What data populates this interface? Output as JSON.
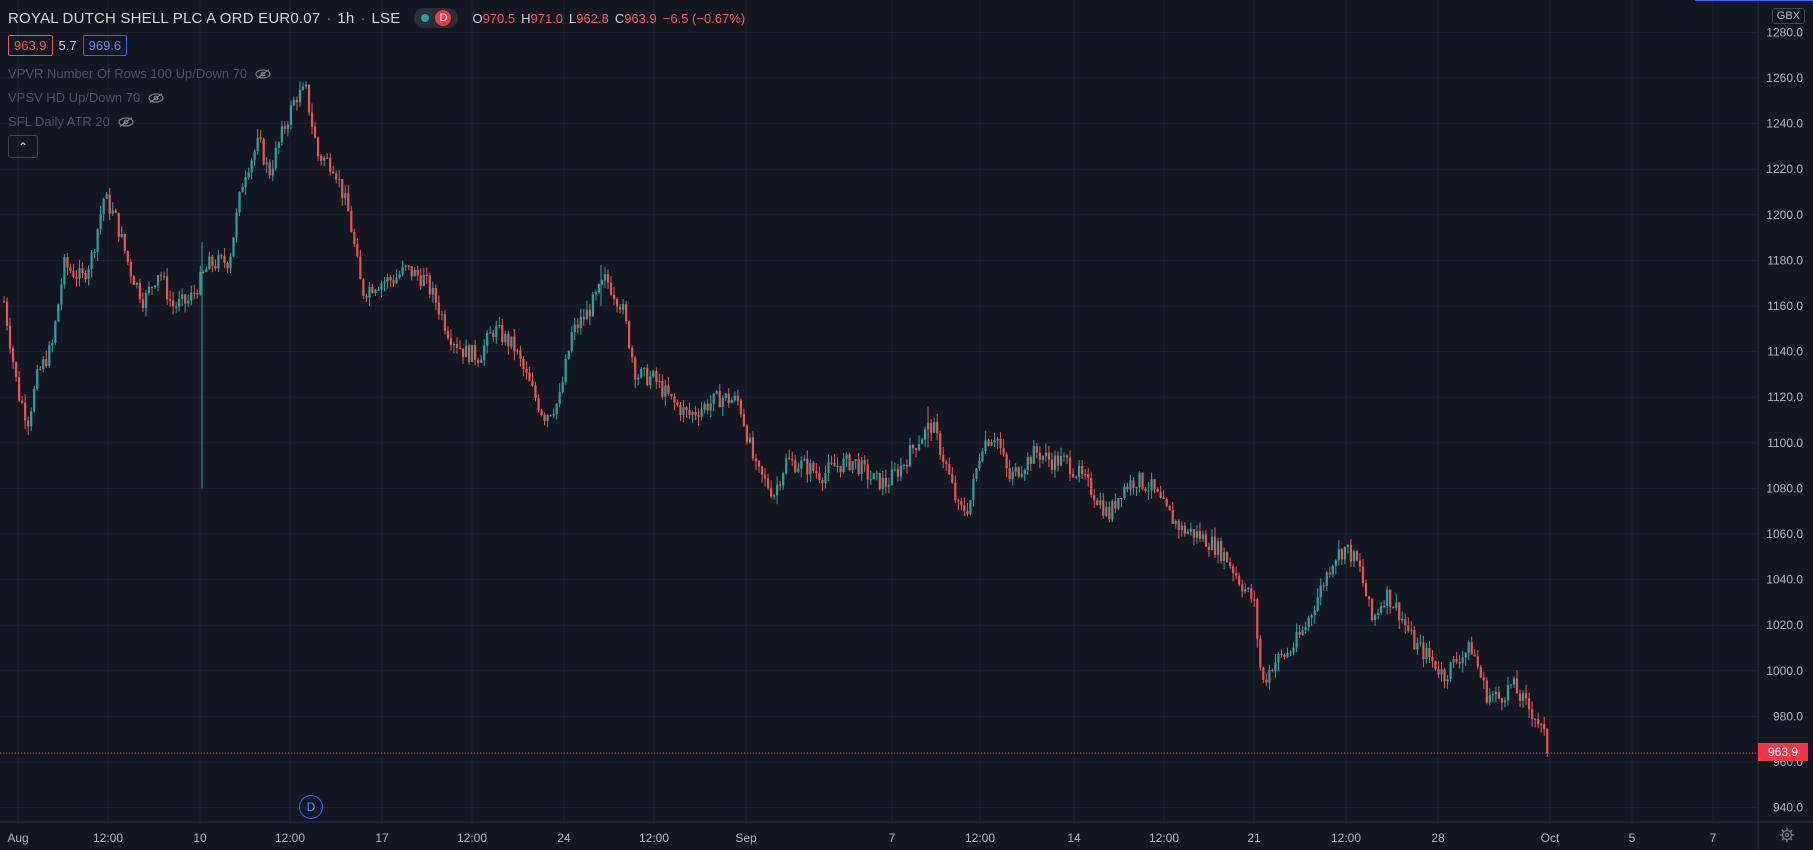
{
  "header": {
    "symbol": "ROYAL DUTCH SHELL PLC A ORD EUR0.07",
    "interval": "1h",
    "exchange": "LSE",
    "status_badge": "D",
    "ohlc": {
      "o_label": "O",
      "o": "970.5",
      "h_label": "H",
      "h": "971.0",
      "l_label": "L",
      "l": "962.8",
      "c_label": "C",
      "c": "963.9",
      "change": "−6.5 (−0.67%)"
    }
  },
  "price_boxes": {
    "bid": "963.9",
    "spread": "5.7",
    "ask": "969.6"
  },
  "indicators": [
    {
      "label": "VPVR Number Of Rows 100 Up/Down 70"
    },
    {
      "label": "VPSV HD Up/Down 70"
    },
    {
      "label": "SFL Daily ATR 20"
    }
  ],
  "currency": "GBX",
  "last_price_tag": "963.9",
  "event_marker": "D",
  "colors": {
    "up": "#26a69a",
    "down": "#ef5350",
    "grid": "#1e2230",
    "axis_text": "#b2b5be",
    "background": "#131722"
  },
  "chart_data": {
    "type": "candlestick",
    "y_axis": {
      "min": 930,
      "max": 1285,
      "ticks": [
        940,
        960,
        980,
        1000,
        1020,
        1040,
        1060,
        1080,
        1100,
        1120,
        1140,
        1160,
        1180,
        1200,
        1220,
        1240,
        1260,
        1280
      ],
      "tick_labels": [
        "940.0",
        "960.0",
        "980.0",
        "1000.0",
        "1020.0",
        "1040.0",
        "1060.0",
        "1080.0",
        "1100.0",
        "1120.0",
        "1140.0",
        "1160.0",
        "1180.0",
        "1200.0",
        "1220.0",
        "1240.0",
        "1260.0",
        "1280.0"
      ]
    },
    "x_axis": {
      "labels": [
        "Aug",
        "12:00",
        "10",
        "12:00",
        "17",
        "12:00",
        "24",
        "12:00",
        "Sep",
        "7",
        "12:00",
        "14",
        "12:00",
        "21",
        "12:00",
        "28",
        "Oct",
        "5",
        "7"
      ]
    },
    "last_price": 963.9,
    "path": [
      {
        "t": 0,
        "p": 1162
      },
      {
        "t": 14,
        "p": 1122
      },
      {
        "t": 24,
        "p": 1110
      },
      {
        "t": 34,
        "p": 1130
      },
      {
        "t": 48,
        "p": 1142
      },
      {
        "t": 60,
        "p": 1178
      },
      {
        "t": 78,
        "p": 1172
      },
      {
        "t": 88,
        "p": 1182
      },
      {
        "t": 100,
        "p": 1208
      },
      {
        "t": 112,
        "p": 1198
      },
      {
        "t": 126,
        "p": 1176
      },
      {
        "t": 140,
        "p": 1162
      },
      {
        "t": 155,
        "p": 1176
      },
      {
        "t": 168,
        "p": 1160
      },
      {
        "t": 185,
        "p": 1162
      },
      {
        "t": 205,
        "p": 1178
      },
      {
        "t": 225,
        "p": 1180
      },
      {
        "t": 240,
        "p": 1218
      },
      {
        "t": 255,
        "p": 1232
      },
      {
        "t": 265,
        "p": 1218
      },
      {
        "t": 280,
        "p": 1238
      },
      {
        "t": 292,
        "p": 1252
      },
      {
        "t": 302,
        "p": 1254
      },
      {
        "t": 314,
        "p": 1226
      },
      {
        "t": 330,
        "p": 1222
      },
      {
        "t": 345,
        "p": 1200
      },
      {
        "t": 358,
        "p": 1166
      },
      {
        "t": 372,
        "p": 1170
      },
      {
        "t": 390,
        "p": 1172
      },
      {
        "t": 402,
        "p": 1176
      },
      {
        "t": 420,
        "p": 1172
      },
      {
        "t": 432,
        "p": 1162
      },
      {
        "t": 445,
        "p": 1148
      },
      {
        "t": 460,
        "p": 1140
      },
      {
        "t": 475,
        "p": 1138
      },
      {
        "t": 490,
        "p": 1150
      },
      {
        "t": 510,
        "p": 1142
      },
      {
        "t": 525,
        "p": 1126
      },
      {
        "t": 540,
        "p": 1112
      },
      {
        "t": 555,
        "p": 1118
      },
      {
        "t": 568,
        "p": 1148
      },
      {
        "t": 585,
        "p": 1158
      },
      {
        "t": 602,
        "p": 1172
      },
      {
        "t": 618,
        "p": 1160
      },
      {
        "t": 632,
        "p": 1130
      },
      {
        "t": 650,
        "p": 1128
      },
      {
        "t": 668,
        "p": 1118
      },
      {
        "t": 685,
        "p": 1112
      },
      {
        "t": 700,
        "p": 1116
      },
      {
        "t": 718,
        "p": 1120
      },
      {
        "t": 735,
        "p": 1118
      },
      {
        "t": 752,
        "p": 1088
      },
      {
        "t": 770,
        "p": 1078
      },
      {
        "t": 782,
        "p": 1092
      },
      {
        "t": 800,
        "p": 1090
      },
      {
        "t": 818,
        "p": 1086
      },
      {
        "t": 832,
        "p": 1090
      },
      {
        "t": 850,
        "p": 1092
      },
      {
        "t": 868,
        "p": 1084
      },
      {
        "t": 882,
        "p": 1082
      },
      {
        "t": 898,
        "p": 1090
      },
      {
        "t": 912,
        "p": 1100
      },
      {
        "t": 928,
        "p": 1108
      },
      {
        "t": 942,
        "p": 1090
      },
      {
        "t": 955,
        "p": 1070
      },
      {
        "t": 965,
        "p": 1072
      },
      {
        "t": 978,
        "p": 1100
      },
      {
        "t": 992,
        "p": 1104
      },
      {
        "t": 1005,
        "p": 1084
      },
      {
        "t": 1018,
        "p": 1090
      },
      {
        "t": 1032,
        "p": 1096
      },
      {
        "t": 1048,
        "p": 1092
      },
      {
        "t": 1062,
        "p": 1092
      },
      {
        "t": 1075,
        "p": 1086
      },
      {
        "t": 1090,
        "p": 1078
      },
      {
        "t": 1105,
        "p": 1068
      },
      {
        "t": 1118,
        "p": 1080
      },
      {
        "t": 1132,
        "p": 1084
      },
      {
        "t": 1148,
        "p": 1080
      },
      {
        "t": 1162,
        "p": 1070
      },
      {
        "t": 1178,
        "p": 1062
      },
      {
        "t": 1192,
        "p": 1060
      },
      {
        "t": 1208,
        "p": 1056
      },
      {
        "t": 1222,
        "p": 1050
      },
      {
        "t": 1238,
        "p": 1038
      },
      {
        "t": 1250,
        "p": 1030
      },
      {
        "t": 1258,
        "p": 994
      },
      {
        "t": 1270,
        "p": 1004
      },
      {
        "t": 1285,
        "p": 1008
      },
      {
        "t": 1300,
        "p": 1018
      },
      {
        "t": 1315,
        "p": 1034
      },
      {
        "t": 1330,
        "p": 1050
      },
      {
        "t": 1342,
        "p": 1054
      },
      {
        "t": 1355,
        "p": 1046
      },
      {
        "t": 1368,
        "p": 1022
      },
      {
        "t": 1382,
        "p": 1034
      },
      {
        "t": 1395,
        "p": 1026
      },
      {
        "t": 1410,
        "p": 1012
      },
      {
        "t": 1425,
        "p": 1006
      },
      {
        "t": 1440,
        "p": 998
      },
      {
        "t": 1455,
        "p": 1006
      },
      {
        "t": 1468,
        "p": 1010
      },
      {
        "t": 1482,
        "p": 990
      },
      {
        "t": 1495,
        "p": 988
      },
      {
        "t": 1508,
        "p": 994
      },
      {
        "t": 1520,
        "p": 986
      },
      {
        "t": 1532,
        "p": 980
      },
      {
        "t": 1543,
        "p": 968
      },
      {
        "t": 1546,
        "p": 963.9
      }
    ]
  }
}
